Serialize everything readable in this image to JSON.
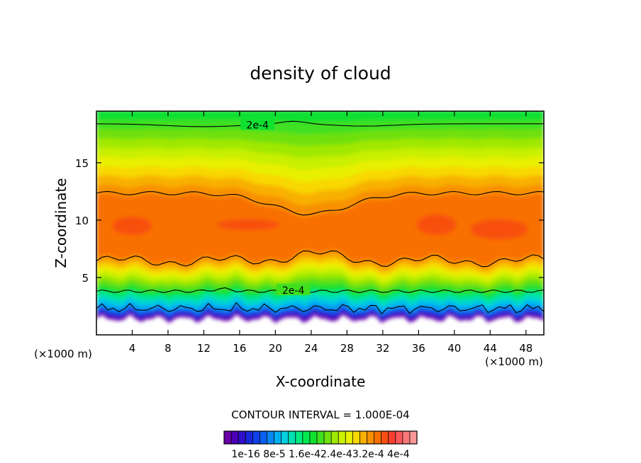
{
  "chart_data": {
    "type": "heatmap",
    "title": "density of cloud",
    "xlabel": "X-coordinate",
    "ylabel": "Z-coordinate",
    "x_unit_left": "(×1000 m)",
    "x_unit_right": "(×1000 m)",
    "xlim": [
      0,
      50
    ],
    "ylim": [
      0,
      19.5
    ],
    "x_ticks": [
      4,
      8,
      12,
      16,
      20,
      24,
      28,
      32,
      36,
      40,
      44,
      48
    ],
    "y_ticks": [
      5,
      10,
      15
    ],
    "contour_interval_text": "CONTOUR INTERVAL = 1.000E-04",
    "contour_labels": [
      "2e-4",
      "2e-4"
    ],
    "colorbar": {
      "labels": [
        "1e-16",
        "8e-5",
        "1.6e-4",
        "2.4e-4",
        "3.2e-4",
        "4e-4"
      ],
      "label_text": "1e-16 8e-5 1.6e-42.4e-43.2e-4 4e-4",
      "colors": [
        "#6a00a8",
        "#4b00b8",
        "#3010c8",
        "#1828d8",
        "#1040e8",
        "#0a60f0",
        "#0888f0",
        "#00b0f0",
        "#00d0e0",
        "#00e0b0",
        "#00e880",
        "#00e850",
        "#10e030",
        "#40e020",
        "#70e010",
        "#a0e800",
        "#c8f000",
        "#e8f000",
        "#f8d800",
        "#f8b000",
        "#f89000",
        "#f87000",
        "#f85010",
        "#f84030",
        "#f85858",
        "#f87878",
        "#f89898"
      ]
    }
  }
}
